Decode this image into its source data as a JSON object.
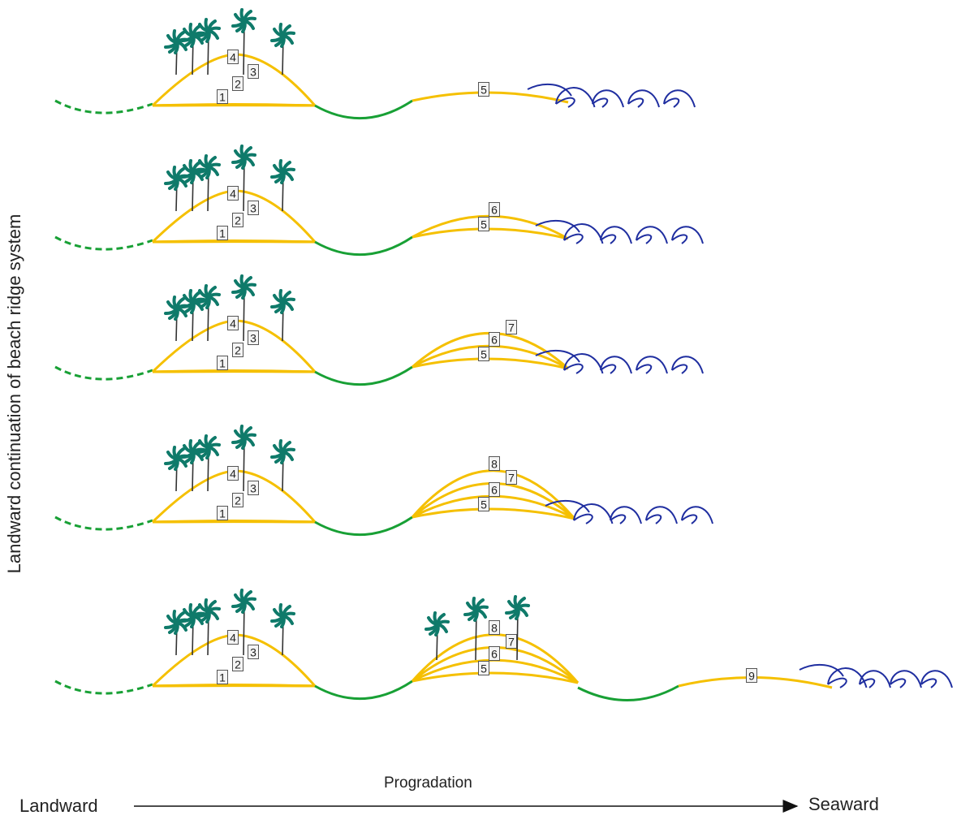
{
  "side_label": "Landward continuation of beach ridge system",
  "axis": {
    "left": "Landward",
    "right": "Seaward",
    "middle": "Progradation"
  },
  "colors": {
    "ridge": "#f5c000",
    "swale": "#18a035",
    "wave": "#1f2ea0",
    "tree": "#0f7a6a",
    "trunk": "#333333",
    "label_border": "#555555"
  },
  "stages": [
    {
      "ridge1_labels": [
        "1",
        "2",
        "3",
        "4"
      ],
      "ridge2_labels": [
        "5"
      ],
      "ridge3_labels": []
    },
    {
      "ridge1_labels": [
        "1",
        "2",
        "3",
        "4"
      ],
      "ridge2_labels": [
        "5",
        "6"
      ],
      "ridge3_labels": []
    },
    {
      "ridge1_labels": [
        "1",
        "2",
        "3",
        "4"
      ],
      "ridge2_labels": [
        "5",
        "6",
        "7"
      ],
      "ridge3_labels": []
    },
    {
      "ridge1_labels": [
        "1",
        "2",
        "3",
        "4",
        "5",
        "6",
        "7",
        "8"
      ],
      "ridge2_labels": [],
      "ridge3_labels": []
    },
    {
      "ridge1_labels": [
        "1",
        "2",
        "3",
        "4"
      ],
      "ridge2_labels": [
        "5",
        "6",
        "7",
        "8"
      ],
      "ridge3_labels": [
        "9"
      ]
    }
  ]
}
